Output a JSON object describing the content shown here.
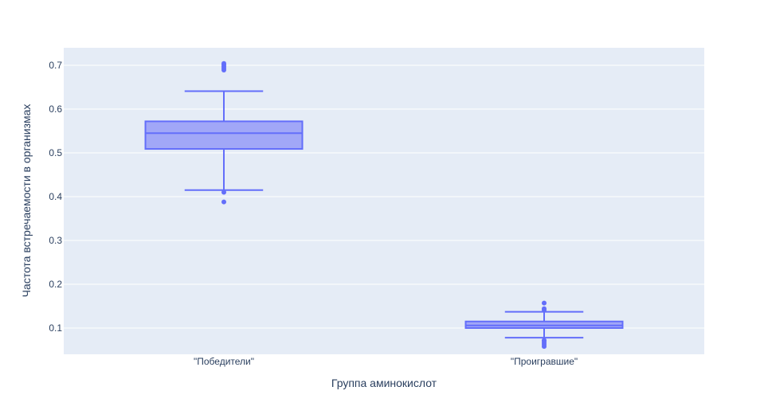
{
  "chart_data": {
    "type": "box",
    "title": "",
    "xlabel": "Группа аминокислот",
    "ylabel": "Частота встречаемости в организмах",
    "ylim": [
      0.04,
      0.74
    ],
    "yticks": [
      0.1,
      0.2,
      0.3,
      0.4,
      0.5,
      0.6,
      0.7
    ],
    "ytick_labels": [
      "0.1",
      "0.2",
      "0.3",
      "0.4",
      "0.5",
      "0.6",
      "0.7"
    ],
    "grid": true,
    "categories": [
      "\"Победители\"",
      "\"Проигравшие\""
    ],
    "boxes": [
      {
        "category": "\"Победители\"",
        "q1": 0.509,
        "median": 0.545,
        "q3": 0.572,
        "lower_whisker": 0.415,
        "upper_whisker": 0.641,
        "outliers": [
          0.388,
          0.41,
          0.689,
          0.693,
          0.697,
          0.701,
          0.704
        ]
      },
      {
        "category": "\"Проигравшие\"",
        "q1": 0.1,
        "median": 0.106,
        "q3": 0.115,
        "lower_whisker": 0.078,
        "upper_whisker": 0.137,
        "outliers": [
          0.058,
          0.062,
          0.066,
          0.07,
          0.072,
          0.141,
          0.144,
          0.157
        ]
      }
    ],
    "colors": {
      "box_line": "#636efa",
      "box_fill": "#a1a7f7",
      "plot_bg": "#e5ecf6",
      "grid": "#ffffff",
      "text": "#2a3f5f"
    }
  }
}
